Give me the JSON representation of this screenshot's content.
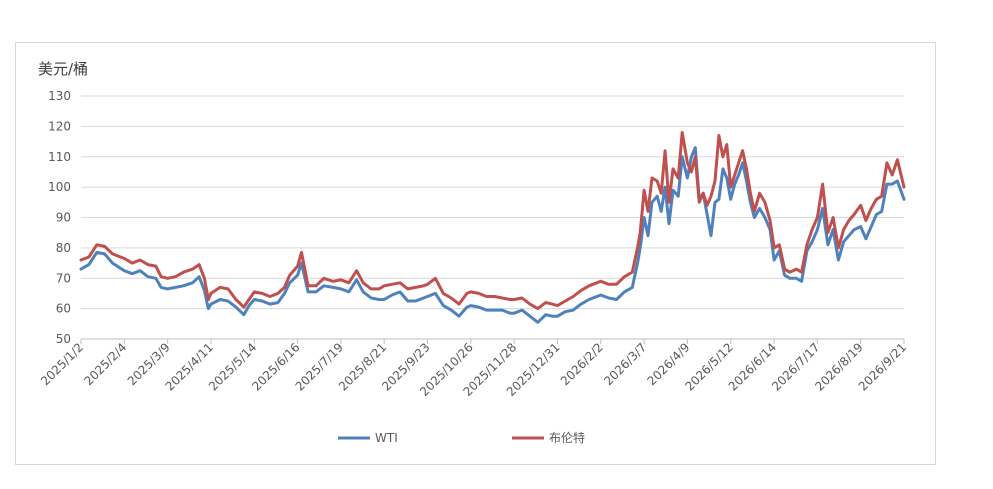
{
  "chart_data": {
    "type": "line",
    "unit_label": "美元/桶",
    "ylim": [
      50,
      130
    ],
    "y_ticks": [
      50,
      60,
      70,
      80,
      90,
      100,
      110,
      120,
      130
    ],
    "x_ticks": [
      "2025/1/2",
      "2025/2/4",
      "2025/3/9",
      "2025/4/11",
      "2025/5/14",
      "2025/6/16",
      "2025/7/19",
      "2025/8/21",
      "2025/9/23",
      "2025/10/26",
      "2025/11/28",
      "2025/12/31",
      "2026/2/2",
      "2026/3/7",
      "2026/4/9",
      "2026/5/12",
      "2026/6/14",
      "2026/7/17",
      "2026/8/19",
      "2026/9/21"
    ],
    "grid": true,
    "legend_position": "bottom",
    "series": [
      {
        "name": "WTI",
        "color": "#4f81bd",
        "points": [
          [
            "2025/1/2",
            73
          ],
          [
            "2025/1/8",
            74.5
          ],
          [
            "2025/1/14",
            78.5
          ],
          [
            "2025/1/20",
            78
          ],
          [
            "2025/1/26",
            75
          ],
          [
            "2025/2/4",
            72.5
          ],
          [
            "2025/2/10",
            71.5
          ],
          [
            "2025/2/16",
            72.5
          ],
          [
            "2025/2/22",
            70.5
          ],
          [
            "2025/2/28",
            70
          ],
          [
            "2025/3/4",
            67
          ],
          [
            "2025/3/9",
            66.5
          ],
          [
            "2025/3/15",
            67
          ],
          [
            "2025/3/21",
            67.5
          ],
          [
            "2025/3/28",
            68.5
          ],
          [
            "2025/4/2",
            70.5
          ],
          [
            "2025/4/6",
            66
          ],
          [
            "2025/4/9",
            60
          ],
          [
            "2025/4/11",
            61.5
          ],
          [
            "2025/4/18",
            63
          ],
          [
            "2025/4/24",
            62.5
          ],
          [
            "2025/4/30",
            60.5
          ],
          [
            "2025/5/6",
            58
          ],
          [
            "2025/5/10",
            61
          ],
          [
            "2025/5/14",
            63
          ],
          [
            "2025/5/20",
            62.5
          ],
          [
            "2025/5/26",
            61.5
          ],
          [
            "2025/6/1",
            62
          ],
          [
            "2025/6/6",
            65
          ],
          [
            "2025/6/10",
            68.5
          ],
          [
            "2025/6/16",
            71
          ],
          [
            "2025/6/19",
            75
          ],
          [
            "2025/6/24",
            65.5
          ],
          [
            "2025/6/30",
            65.5
          ],
          [
            "2025/7/6",
            67.5
          ],
          [
            "2025/7/13",
            67
          ],
          [
            "2025/7/19",
            66.5
          ],
          [
            "2025/7/25",
            65.5
          ],
          [
            "2025/7/31",
            69.5
          ],
          [
            "2025/8/5",
            65.5
          ],
          [
            "2025/8/11",
            63.5
          ],
          [
            "2025/8/17",
            63
          ],
          [
            "2025/8/21",
            63
          ],
          [
            "2025/8/27",
            64.5
          ],
          [
            "2025/9/2",
            65.5
          ],
          [
            "2025/9/8",
            62.5
          ],
          [
            "2025/9/14",
            62.5
          ],
          [
            "2025/9/20",
            63.5
          ],
          [
            "2025/9/23",
            64
          ],
          [
            "2025/9/29",
            65
          ],
          [
            "2025/10/5",
            61
          ],
          [
            "2025/10/11",
            59.5
          ],
          [
            "2025/10/17",
            57.5
          ],
          [
            "2025/10/23",
            60.5
          ],
          [
            "2025/10/26",
            61
          ],
          [
            "2025/11/1",
            60.5
          ],
          [
            "2025/11/7",
            59.5
          ],
          [
            "2025/11/13",
            59.5
          ],
          [
            "2025/11/19",
            59.5
          ],
          [
            "2025/11/25",
            58.5
          ],
          [
            "2025/11/28",
            58.5
          ],
          [
            "2025/12/4",
            59.5
          ],
          [
            "2025/12/10",
            57.5
          ],
          [
            "2025/12/16",
            55.5
          ],
          [
            "2025/12/22",
            58
          ],
          [
            "2025/12/27",
            57.5
          ],
          [
            "2025/12/31",
            57.5
          ],
          [
            "2026/1/6",
            59
          ],
          [
            "2026/1/12",
            59.5
          ],
          [
            "2026/1/18",
            61.5
          ],
          [
            "2026/1/24",
            63
          ],
          [
            "2026/2/2",
            64.5
          ],
          [
            "2026/2/8",
            63.5
          ],
          [
            "2026/2/14",
            63
          ],
          [
            "2026/2/20",
            65.5
          ],
          [
            "2026/2/26",
            67
          ],
          [
            "2026/3/2",
            75
          ],
          [
            "2026/3/4",
            80
          ],
          [
            "2026/3/7",
            90
          ],
          [
            "2026/3/10",
            84
          ],
          [
            "2026/3/13",
            95
          ],
          [
            "2026/3/17",
            97
          ],
          [
            "2026/3/20",
            92
          ],
          [
            "2026/3/23",
            100
          ],
          [
            "2026/3/26",
            88
          ],
          [
            "2026/3/29",
            99
          ],
          [
            "2026/4/2",
            97
          ],
          [
            "2026/4/5",
            110
          ],
          [
            "2026/4/9",
            103
          ],
          [
            "2026/4/12",
            110
          ],
          [
            "2026/4/15",
            113
          ],
          [
            "2026/4/18",
            96
          ],
          [
            "2026/4/21",
            98
          ],
          [
            "2026/4/24",
            91
          ],
          [
            "2026/4/27",
            84
          ],
          [
            "2026/4/30",
            95
          ],
          [
            "2026/5/3",
            96
          ],
          [
            "2026/5/6",
            106
          ],
          [
            "2026/5/9",
            103
          ],
          [
            "2026/5/12",
            96
          ],
          [
            "2026/5/15",
            101
          ],
          [
            "2026/5/18",
            104
          ],
          [
            "2026/5/21",
            108
          ],
          [
            "2026/5/24",
            102
          ],
          [
            "2026/5/27",
            95
          ],
          [
            "2026/5/30",
            90
          ],
          [
            "2026/6/3",
            93
          ],
          [
            "2026/6/7",
            90
          ],
          [
            "2026/6/11",
            86
          ],
          [
            "2026/6/14",
            76
          ],
          [
            "2026/6/18",
            79
          ],
          [
            "2026/6/22",
            71
          ],
          [
            "2026/6/26",
            70
          ],
          [
            "2026/7/1",
            70
          ],
          [
            "2026/7/5",
            69
          ],
          [
            "2026/7/9",
            79
          ],
          [
            "2026/7/13",
            82
          ],
          [
            "2026/7/17",
            86
          ],
          [
            "2026/7/21",
            93
          ],
          [
            "2026/7/25",
            81
          ],
          [
            "2026/7/29",
            86
          ],
          [
            "2026/8/2",
            76
          ],
          [
            "2026/8/6",
            82
          ],
          [
            "2026/8/10",
            84
          ],
          [
            "2026/8/14",
            86
          ],
          [
            "2026/8/19",
            87
          ],
          [
            "2026/8/23",
            83
          ],
          [
            "2026/8/27",
            87
          ],
          [
            "2026/8/31",
            91
          ],
          [
            "2026/9/4",
            92
          ],
          [
            "2026/9/8",
            101
          ],
          [
            "2026/9/12",
            101
          ],
          [
            "2026/9/16",
            102
          ],
          [
            "2026/9/21",
            96
          ]
        ]
      },
      {
        "name": "布伦特",
        "color": "#c0504d",
        "points": [
          [
            "2025/1/2",
            76
          ],
          [
            "2025/1/8",
            77
          ],
          [
            "2025/1/14",
            81
          ],
          [
            "2025/1/20",
            80.5
          ],
          [
            "2025/1/26",
            78
          ],
          [
            "2025/2/4",
            76.5
          ],
          [
            "2025/2/10",
            75
          ],
          [
            "2025/2/16",
            76
          ],
          [
            "2025/2/22",
            74.5
          ],
          [
            "2025/2/28",
            74
          ],
          [
            "2025/3/4",
            70.5
          ],
          [
            "2025/3/9",
            70
          ],
          [
            "2025/3/15",
            70.5
          ],
          [
            "2025/3/21",
            72
          ],
          [
            "2025/3/28",
            73
          ],
          [
            "2025/4/2",
            74.5
          ],
          [
            "2025/4/6",
            70
          ],
          [
            "2025/4/9",
            63
          ],
          [
            "2025/4/11",
            65
          ],
          [
            "2025/4/18",
            67
          ],
          [
            "2025/4/24",
            66.5
          ],
          [
            "2025/4/30",
            63
          ],
          [
            "2025/5/6",
            60.5
          ],
          [
            "2025/5/10",
            63
          ],
          [
            "2025/5/14",
            65.5
          ],
          [
            "2025/5/20",
            65
          ],
          [
            "2025/5/26",
            64
          ],
          [
            "2025/6/1",
            65
          ],
          [
            "2025/6/6",
            67
          ],
          [
            "2025/6/10",
            71
          ],
          [
            "2025/6/16",
            74
          ],
          [
            "2025/6/19",
            78.5
          ],
          [
            "2025/6/24",
            67.5
          ],
          [
            "2025/6/30",
            67.5
          ],
          [
            "2025/7/6",
            70
          ],
          [
            "2025/7/13",
            69
          ],
          [
            "2025/7/19",
            69.5
          ],
          [
            "2025/7/25",
            68.5
          ],
          [
            "2025/7/31",
            72.5
          ],
          [
            "2025/8/5",
            68.5
          ],
          [
            "2025/8/11",
            66.5
          ],
          [
            "2025/8/17",
            66.5
          ],
          [
            "2025/8/21",
            67.5
          ],
          [
            "2025/8/27",
            68
          ],
          [
            "2025/9/2",
            68.5
          ],
          [
            "2025/9/8",
            66.5
          ],
          [
            "2025/9/14",
            67
          ],
          [
            "2025/9/20",
            67.5
          ],
          [
            "2025/9/23",
            68
          ],
          [
            "2025/9/29",
            70
          ],
          [
            "2025/10/5",
            65
          ],
          [
            "2025/10/11",
            63.5
          ],
          [
            "2025/10/17",
            61.5
          ],
          [
            "2025/10/23",
            65
          ],
          [
            "2025/10/26",
            65.5
          ],
          [
            "2025/11/1",
            65
          ],
          [
            "2025/11/7",
            64
          ],
          [
            "2025/11/13",
            64
          ],
          [
            "2025/11/19",
            63.5
          ],
          [
            "2025/11/25",
            63
          ],
          [
            "2025/11/28",
            63
          ],
          [
            "2025/12/4",
            63.5
          ],
          [
            "2025/12/10",
            61.5
          ],
          [
            "2025/12/16",
            60
          ],
          [
            "2025/12/22",
            62
          ],
          [
            "2025/12/27",
            61.5
          ],
          [
            "2025/12/31",
            61
          ],
          [
            "2026/1/6",
            62.5
          ],
          [
            "2026/1/12",
            64
          ],
          [
            "2026/1/18",
            66
          ],
          [
            "2026/1/24",
            67.5
          ],
          [
            "2026/2/2",
            69
          ],
          [
            "2026/2/8",
            68
          ],
          [
            "2026/2/14",
            68
          ],
          [
            "2026/2/20",
            70.5
          ],
          [
            "2026/2/26",
            72
          ],
          [
            "2026/3/2",
            80
          ],
          [
            "2026/3/4",
            85
          ],
          [
            "2026/3/7",
            99
          ],
          [
            "2026/3/10",
            92
          ],
          [
            "2026/3/13",
            103
          ],
          [
            "2026/3/17",
            102
          ],
          [
            "2026/3/20",
            98
          ],
          [
            "2026/3/23",
            112
          ],
          [
            "2026/3/26",
            95
          ],
          [
            "2026/3/29",
            106
          ],
          [
            "2026/4/2",
            103
          ],
          [
            "2026/4/5",
            118
          ],
          [
            "2026/4/9",
            108
          ],
          [
            "2026/4/12",
            105
          ],
          [
            "2026/4/15",
            110
          ],
          [
            "2026/4/18",
            95
          ],
          [
            "2026/4/21",
            98
          ],
          [
            "2026/4/24",
            94
          ],
          [
            "2026/4/27",
            97
          ],
          [
            "2026/4/30",
            102
          ],
          [
            "2026/5/3",
            117
          ],
          [
            "2026/5/6",
            110
          ],
          [
            "2026/5/9",
            114
          ],
          [
            "2026/5/12",
            100
          ],
          [
            "2026/5/15",
            104
          ],
          [
            "2026/5/18",
            108
          ],
          [
            "2026/5/21",
            112
          ],
          [
            "2026/5/24",
            106
          ],
          [
            "2026/5/27",
            98
          ],
          [
            "2026/5/30",
            92
          ],
          [
            "2026/6/3",
            98
          ],
          [
            "2026/6/7",
            95
          ],
          [
            "2026/6/11",
            89
          ],
          [
            "2026/6/14",
            80
          ],
          [
            "2026/6/18",
            81
          ],
          [
            "2026/6/22",
            73
          ],
          [
            "2026/6/26",
            72
          ],
          [
            "2026/7/1",
            73
          ],
          [
            "2026/7/5",
            72
          ],
          [
            "2026/7/9",
            81
          ],
          [
            "2026/7/13",
            86
          ],
          [
            "2026/7/17",
            90
          ],
          [
            "2026/7/21",
            101
          ],
          [
            "2026/7/25",
            85
          ],
          [
            "2026/7/29",
            90
          ],
          [
            "2026/8/2",
            80
          ],
          [
            "2026/8/6",
            86
          ],
          [
            "2026/8/10",
            89
          ],
          [
            "2026/8/14",
            91
          ],
          [
            "2026/8/19",
            94
          ],
          [
            "2026/8/23",
            89
          ],
          [
            "2026/8/27",
            93
          ],
          [
            "2026/8/31",
            96
          ],
          [
            "2026/9/4",
            97
          ],
          [
            "2026/9/8",
            108
          ],
          [
            "2026/9/12",
            104
          ],
          [
            "2026/9/16",
            109
          ],
          [
            "2026/9/21",
            100
          ]
        ]
      }
    ]
  }
}
